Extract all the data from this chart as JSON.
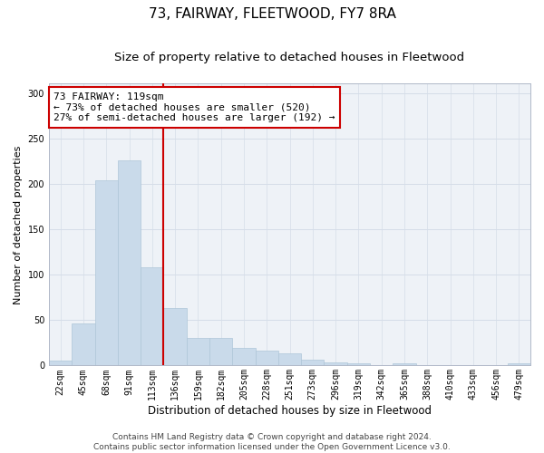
{
  "title1": "73, FAIRWAY, FLEETWOOD, FY7 8RA",
  "title2": "Size of property relative to detached houses in Fleetwood",
  "xlabel": "Distribution of detached houses by size in Fleetwood",
  "ylabel": "Number of detached properties",
  "bar_values": [
    5,
    46,
    204,
    226,
    108,
    63,
    30,
    30,
    19,
    16,
    13,
    6,
    3,
    2,
    0,
    2,
    0,
    0,
    0,
    0,
    2
  ],
  "bar_labels": [
    "22sqm",
    "45sqm",
    "68sqm",
    "91sqm",
    "113sqm",
    "136sqm",
    "159sqm",
    "182sqm",
    "205sqm",
    "228sqm",
    "251sqm",
    "273sqm",
    "296sqm",
    "319sqm",
    "342sqm",
    "365sqm",
    "388sqm",
    "410sqm",
    "433sqm",
    "456sqm",
    "479sqm"
  ],
  "bar_color": "#c9daea",
  "bar_edge_color": "#aec6d8",
  "vline_color": "#cc0000",
  "annotation_text": "73 FAIRWAY: 119sqm\n← 73% of detached houses are smaller (520)\n27% of semi-detached houses are larger (192) →",
  "annotation_box_color": "white",
  "annotation_edge_color": "#cc0000",
  "ylim": [
    0,
    310
  ],
  "yticks": [
    0,
    50,
    100,
    150,
    200,
    250,
    300
  ],
  "grid_color": "#d5dde8",
  "background_color": "#eef2f7",
  "fig_background": "#ffffff",
  "footer_text": "Contains HM Land Registry data © Crown copyright and database right 2024.\nContains public sector information licensed under the Open Government Licence v3.0.",
  "title1_fontsize": 11,
  "title2_fontsize": 9.5,
  "xlabel_fontsize": 8.5,
  "ylabel_fontsize": 8,
  "tick_fontsize": 7,
  "annotation_fontsize": 8,
  "footer_fontsize": 6.5
}
